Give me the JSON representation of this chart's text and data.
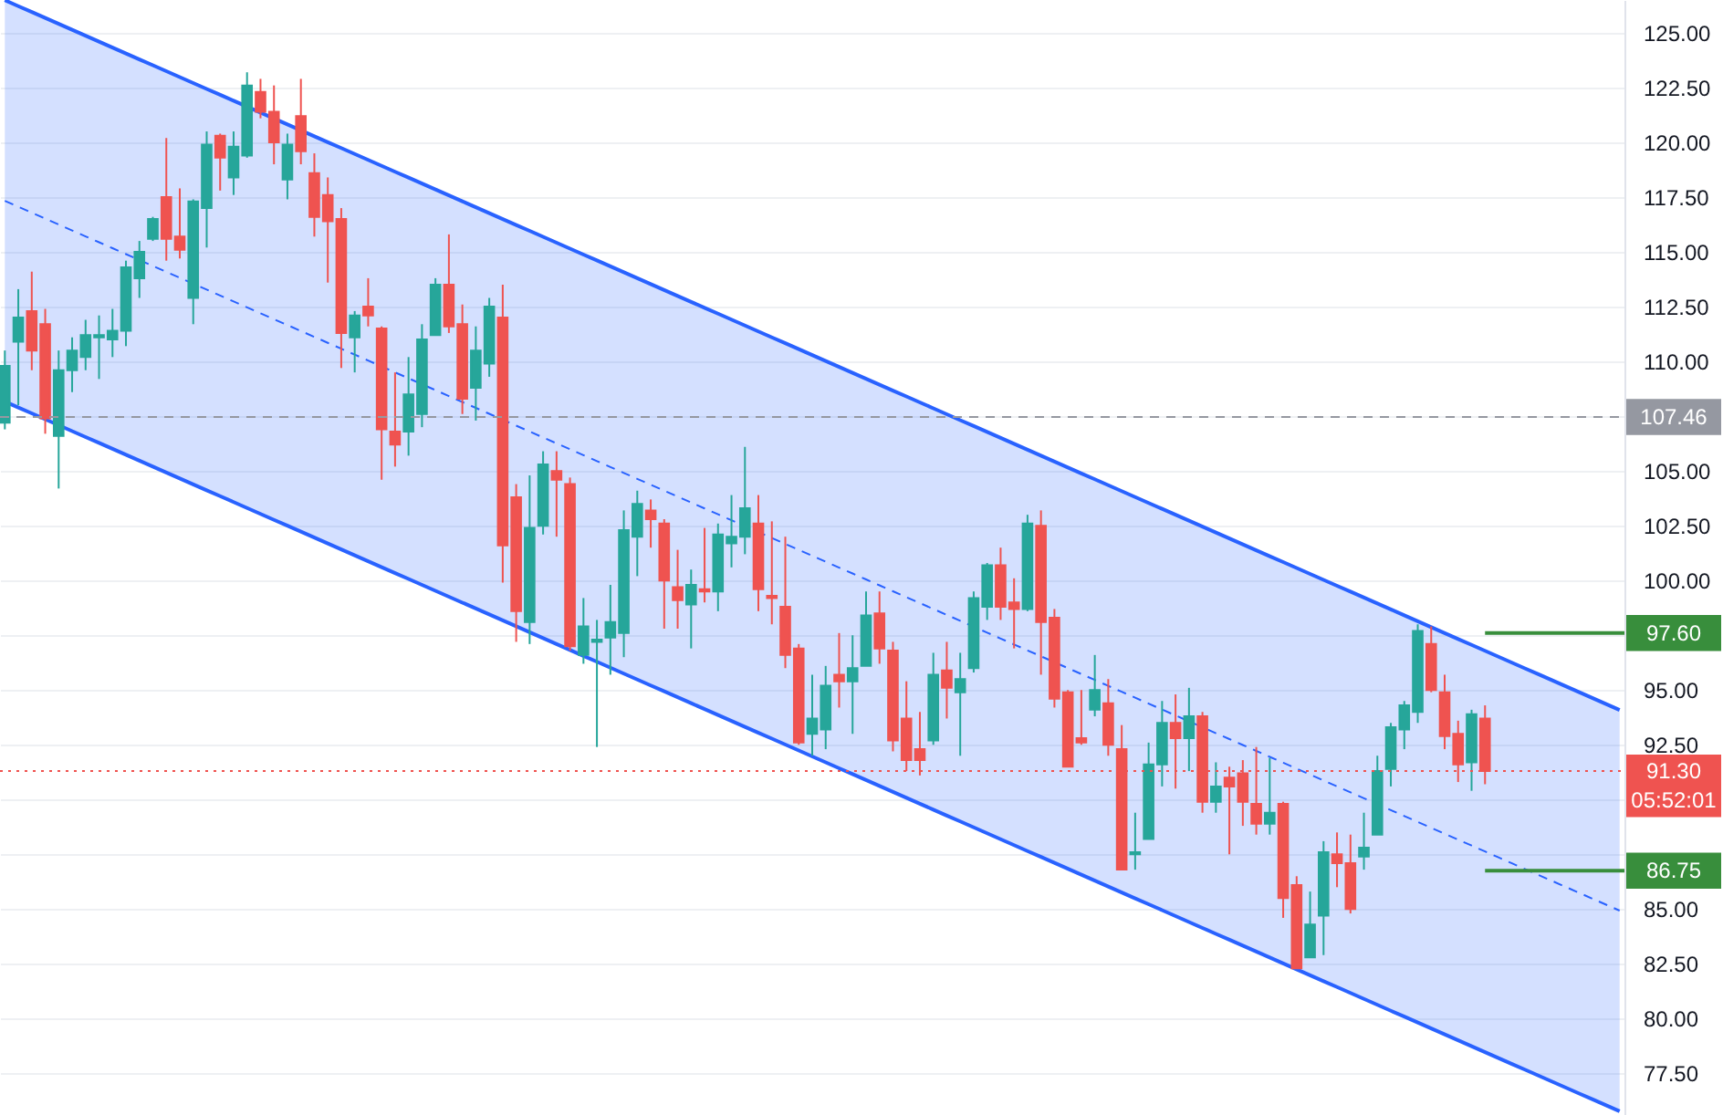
{
  "chart_data": {
    "type": "candlestick",
    "categories": [
      null,
      null,
      null,
      null,
      null,
      null,
      null,
      null,
      null,
      null,
      null,
      null,
      null,
      null,
      null,
      null,
      null,
      null,
      null,
      null,
      null,
      null,
      null,
      null,
      null,
      null,
      null,
      null,
      null,
      null,
      null,
      null,
      null,
      null,
      null,
      null,
      null,
      null,
      null,
      null,
      null,
      null,
      null,
      null,
      null,
      null,
      null,
      null,
      null,
      null,
      null,
      null,
      null,
      null,
      null,
      null,
      null,
      null,
      null,
      null,
      null,
      null,
      null,
      null,
      null,
      null,
      null,
      null,
      null,
      null,
      null,
      null,
      null,
      null,
      null,
      null,
      null,
      null,
      null,
      null,
      null,
      null,
      null,
      null,
      null,
      null,
      null,
      null,
      null,
      null,
      null,
      null,
      null,
      null,
      null,
      null,
      null,
      null,
      null,
      null,
      null,
      null,
      null,
      null,
      null,
      null,
      null,
      null,
      null,
      null,
      null,
      null,
      null,
      null,
      null,
      null,
      null,
      null,
      null,
      null,
      null
    ],
    "ohlc": [
      [
        107.2,
        110.5,
        106.9,
        109.8
      ],
      [
        110.9,
        113.3,
        108.0,
        112.0
      ],
      [
        112.3,
        114.1,
        109.6,
        110.5
      ],
      [
        111.7,
        112.4,
        106.7,
        107.4
      ],
      [
        106.6,
        110.5,
        104.2,
        109.6
      ],
      [
        109.6,
        111.1,
        108.6,
        110.5
      ],
      [
        110.2,
        111.9,
        109.6,
        111.2
      ],
      [
        111.1,
        112.1,
        109.2,
        111.2
      ],
      [
        111.0,
        112.4,
        110.2,
        111.4
      ],
      [
        111.4,
        114.6,
        110.7,
        114.3
      ],
      [
        113.8,
        115.5,
        112.9,
        115.0
      ],
      [
        115.6,
        116.6,
        115.5,
        116.5
      ],
      [
        117.5,
        120.2,
        114.6,
        115.6
      ],
      [
        115.7,
        117.9,
        114.7,
        115.1
      ],
      [
        112.9,
        117.4,
        111.7,
        117.3
      ],
      [
        117.0,
        120.5,
        115.2,
        119.9
      ],
      [
        120.3,
        120.4,
        117.8,
        119.3
      ],
      [
        118.4,
        120.5,
        117.6,
        119.8
      ],
      [
        119.4,
        123.2,
        119.3,
        122.6
      ],
      [
        122.3,
        122.9,
        121.1,
        121.4
      ],
      [
        121.4,
        122.6,
        119.0,
        120.0
      ],
      [
        118.3,
        120.4,
        117.4,
        119.9
      ],
      [
        121.2,
        122.9,
        119.0,
        119.6
      ],
      [
        118.6,
        119.5,
        115.7,
        116.6
      ],
      [
        117.6,
        118.4,
        113.6,
        116.4
      ],
      [
        116.5,
        117.0,
        109.7,
        111.3
      ],
      [
        111.1,
        112.3,
        109.5,
        112.1
      ],
      [
        112.5,
        113.8,
        111.6,
        112.1
      ],
      [
        111.5,
        111.6,
        104.6,
        106.9
      ],
      [
        106.8,
        109.5,
        105.2,
        106.2
      ],
      [
        106.8,
        110.2,
        105.7,
        108.5
      ],
      [
        107.6,
        111.7,
        107.0,
        111.0
      ],
      [
        111.2,
        113.8,
        111.2,
        113.5
      ],
      [
        113.5,
        115.8,
        111.3,
        111.6
      ],
      [
        111.7,
        112.6,
        107.6,
        108.3
      ],
      [
        108.8,
        111.6,
        107.3,
        110.5
      ],
      [
        109.9,
        112.9,
        109.3,
        112.5
      ],
      [
        112.0,
        113.5,
        99.9,
        101.6
      ],
      [
        103.8,
        104.4,
        97.2,
        98.6
      ],
      [
        98.1,
        104.8,
        97.1,
        102.4
      ],
      [
        102.5,
        105.9,
        102.1,
        105.3
      ],
      [
        105.0,
        105.9,
        102.0,
        104.6
      ],
      [
        104.4,
        104.7,
        96.8,
        97.0
      ],
      [
        96.6,
        99.2,
        96.2,
        97.9
      ],
      [
        97.2,
        98.2,
        92.4,
        97.3
      ],
      [
        97.4,
        99.8,
        95.7,
        98.1
      ],
      [
        97.6,
        103.2,
        96.5,
        102.3
      ],
      [
        102.0,
        104.1,
        100.2,
        103.5
      ],
      [
        103.2,
        103.7,
        101.5,
        102.8
      ],
      [
        102.6,
        102.8,
        97.8,
        100.0
      ],
      [
        99.7,
        101.4,
        97.8,
        99.1
      ],
      [
        98.9,
        100.5,
        96.9,
        99.8
      ],
      [
        99.6,
        102.4,
        99.0,
        99.5
      ],
      [
        99.5,
        102.6,
        98.6,
        102.1
      ],
      [
        101.7,
        103.9,
        100.6,
        102.0
      ],
      [
        102.0,
        106.1,
        101.2,
        103.3
      ],
      [
        102.6,
        103.9,
        98.6,
        99.6
      ],
      [
        99.3,
        102.7,
        98.0,
        99.2
      ],
      [
        98.8,
        102.0,
        96.0,
        96.6
      ],
      [
        96.9,
        97.1,
        92.5,
        92.6
      ],
      [
        93.0,
        95.7,
        92.0,
        93.7
      ],
      [
        93.2,
        96.1,
        92.3,
        95.2
      ],
      [
        95.7,
        97.6,
        94.2,
        95.4
      ],
      [
        95.4,
        97.5,
        93.0,
        96.0
      ],
      [
        96.1,
        99.5,
        96.1,
        98.4
      ],
      [
        98.5,
        99.5,
        96.2,
        96.9
      ],
      [
        96.8,
        97.2,
        92.2,
        92.7
      ],
      [
        93.7,
        95.4,
        91.3,
        91.8
      ],
      [
        92.3,
        94.0,
        91.1,
        91.8
      ],
      [
        92.7,
        96.7,
        92.5,
        95.7
      ],
      [
        95.9,
        97.2,
        93.7,
        95.1
      ],
      [
        94.9,
        96.7,
        92.0,
        95.5
      ],
      [
        96.0,
        99.5,
        95.8,
        99.2
      ],
      [
        98.8,
        100.8,
        98.2,
        100.7
      ],
      [
        100.7,
        101.5,
        98.2,
        98.8
      ],
      [
        99.0,
        100.1,
        96.9,
        98.7
      ],
      [
        98.7,
        103.0,
        98.6,
        102.6
      ],
      [
        102.5,
        103.2,
        95.7,
        98.1
      ],
      [
        98.3,
        98.7,
        94.2,
        94.6
      ],
      [
        94.9,
        95.0,
        91.5,
        91.5
      ],
      [
        92.8,
        95.0,
        92.5,
        92.6
      ],
      [
        94.1,
        96.6,
        93.8,
        95.0
      ],
      [
        94.4,
        95.5,
        92.0,
        92.5
      ],
      [
        92.3,
        93.4,
        86.8,
        86.8
      ],
      [
        87.5,
        89.4,
        86.8,
        87.6
      ],
      [
        88.2,
        92.6,
        88.2,
        91.6
      ],
      [
        91.6,
        94.5,
        90.6,
        93.5
      ],
      [
        93.5,
        94.8,
        90.5,
        92.8
      ],
      [
        92.8,
        95.1,
        91.3,
        93.8
      ],
      [
        93.8,
        94.0,
        89.4,
        89.9
      ],
      [
        89.9,
        91.7,
        89.4,
        90.6
      ],
      [
        91.0,
        91.5,
        87.5,
        90.6
      ],
      [
        91.2,
        91.8,
        88.8,
        89.9
      ],
      [
        89.8,
        92.4,
        88.4,
        88.9
      ],
      [
        88.9,
        91.9,
        88.4,
        89.4
      ],
      [
        89.8,
        89.9,
        84.6,
        85.5
      ],
      [
        86.1,
        86.5,
        82.3,
        82.3
      ],
      [
        82.8,
        85.8,
        82.8,
        84.3
      ],
      [
        84.7,
        88.1,
        82.9,
        87.6
      ],
      [
        87.5,
        88.5,
        86.0,
        87.1
      ],
      [
        87.1,
        88.4,
        84.8,
        85.0
      ],
      [
        87.4,
        89.4,
        86.8,
        87.8
      ],
      [
        88.4,
        92.0,
        88.4,
        91.3
      ],
      [
        91.4,
        93.5,
        90.6,
        93.3
      ],
      [
        93.2,
        94.5,
        92.3,
        94.3
      ],
      [
        94.0,
        98.0,
        93.5,
        97.7
      ],
      [
        97.1,
        97.9,
        94.9,
        95.0
      ],
      [
        94.9,
        95.7,
        92.3,
        92.9
      ],
      [
        93.0,
        93.6,
        90.8,
        91.6
      ],
      [
        91.7,
        94.1,
        90.4,
        93.9
      ],
      [
        93.7,
        94.3,
        90.7,
        91.3
      ],
      null,
      null,
      null,
      null,
      null,
      null,
      null,
      null,
      null,
      null
    ],
    "colors": [
      "#26a69a",
      "#26a69a",
      "#ef5350",
      "#ef5350",
      "#26a69a",
      "#26a69a",
      "#26a69a",
      "#26a69a",
      "#26a69a",
      "#26a69a",
      "#26a69a",
      "#26a69a",
      "#ef5350",
      "#ef5350",
      "#26a69a",
      "#26a69a",
      "#ef5350",
      "#26a69a",
      "#26a69a",
      "#ef5350",
      "#ef5350",
      "#26a69a",
      "#ef5350",
      "#ef5350",
      "#ef5350",
      "#ef5350",
      "#26a69a",
      "#ef5350",
      "#ef5350",
      "#ef5350",
      "#26a69a",
      "#26a69a",
      "#26a69a",
      "#ef5350",
      "#ef5350",
      "#26a69a",
      "#26a69a",
      "#ef5350",
      "#ef5350",
      "#26a69a",
      "#26a69a",
      "#ef5350",
      "#ef5350",
      "#26a69a",
      "#26a69a",
      "#26a69a",
      "#26a69a",
      "#26a69a",
      "#ef5350",
      "#ef5350",
      "#ef5350",
      "#26a69a",
      "#ef5350",
      "#26a69a",
      "#26a69a",
      "#26a69a",
      "#ef5350",
      "#ef5350",
      "#ef5350",
      "#ef5350",
      "#26a69a",
      "#26a69a",
      "#ef5350",
      "#26a69a",
      "#26a69a",
      "#ef5350",
      "#ef5350",
      "#ef5350",
      "#ef5350",
      "#26a69a",
      "#ef5350",
      "#26a69a",
      "#26a69a",
      "#26a69a",
      "#ef5350",
      "#ef5350",
      "#26a69a",
      "#ef5350",
      "#ef5350",
      "#ef5350",
      "#ef5350",
      "#26a69a",
      "#ef5350",
      "#ef5350",
      "#26a69a",
      "#26a69a",
      "#26a69a",
      "#ef5350",
      "#26a69a",
      "#ef5350",
      "#26a69a",
      "#ef5350",
      "#ef5350",
      "#ef5350",
      "#26a69a",
      "#ef5350",
      "#ef5350",
      "#26a69a",
      "#26a69a",
      "#ef5350",
      "#ef5350",
      "#26a69a",
      "#26a69a",
      "#26a69a",
      "#26a69a",
      "#26a69a",
      "#ef5350",
      "#ef5350",
      "#ef5350",
      "#26a69a",
      "#ef5350",
      null,
      null,
      null,
      null,
      null,
      null,
      null,
      null,
      null,
      null
    ],
    "series": [
      {
        "type": "line",
        "color": "#2962ff",
        "line_style": "dashed",
        "values": [
          117.33,
          117.06,
          116.79,
          116.52,
          116.25,
          115.98,
          115.71,
          115.44,
          115.17,
          114.9,
          114.63,
          114.36,
          114.09,
          113.82,
          113.55,
          113.28,
          113.01,
          112.74,
          112.47,
          112.2,
          111.93,
          111.66,
          111.39,
          111.12,
          110.85,
          110.58,
          110.31,
          110.04,
          109.77,
          109.5,
          109.23,
          108.96,
          108.69,
          108.42,
          108.15,
          107.88,
          107.61,
          107.34,
          107.07,
          106.8,
          106.53,
          106.26,
          105.99,
          105.72,
          105.45,
          105.18,
          104.91,
          104.64,
          104.37,
          104.1,
          103.83,
          103.56,
          103.29,
          103.02,
          102.75,
          102.48,
          102.21,
          101.94,
          101.67,
          101.4,
          101.13,
          100.86,
          100.59,
          100.32,
          100.05,
          99.78,
          99.51,
          99.24,
          98.97,
          98.7,
          98.43,
          98.16,
          97.89,
          97.62,
          97.35,
          97.08,
          96.81,
          96.54,
          96.27,
          96.0,
          95.73,
          95.46,
          95.19,
          94.92,
          94.65,
          94.38,
          94.11,
          93.84,
          93.57,
          93.3,
          93.03,
          92.76,
          92.49,
          92.22,
          91.95,
          91.68,
          91.41,
          91.14,
          90.87,
          90.6,
          90.33,
          90.06,
          89.79,
          89.52,
          89.25,
          88.98,
          88.71,
          88.44,
          88.17,
          87.9,
          87.63,
          87.36,
          87.09,
          86.82,
          86.55,
          86.28,
          86.01,
          85.74,
          85.47,
          85.2,
          84.93
        ],
        "upper": [
          126.49,
          126.22,
          125.95,
          125.68,
          125.41,
          125.14,
          124.87,
          124.6,
          124.33,
          124.06,
          123.79,
          123.52,
          123.25,
          122.98,
          122.71,
          122.44,
          122.17,
          121.9,
          121.63,
          121.36,
          121.09,
          120.82,
          120.55,
          120.28,
          120.01,
          119.74,
          119.47,
          119.2,
          118.93,
          118.66,
          118.39,
          118.12,
          117.85,
          117.58,
          117.31,
          117.04,
          116.77,
          116.5,
          116.23,
          115.96,
          115.69,
          115.42,
          115.15,
          114.88,
          114.61,
          114.34,
          114.07,
          113.8,
          113.53,
          113.26,
          112.99,
          112.72,
          112.45,
          112.18,
          111.91,
          111.64,
          111.37,
          111.1,
          110.83,
          110.56,
          110.29,
          110.02,
          109.75,
          109.48,
          109.21,
          108.94,
          108.67,
          108.4,
          108.13,
          107.86,
          107.59,
          107.32,
          107.05,
          106.78,
          106.51,
          106.24,
          105.97,
          105.7,
          105.43,
          105.16,
          104.89,
          104.62,
          104.35,
          104.08,
          103.81,
          103.54,
          103.27,
          103.0,
          102.73,
          102.46,
          102.19,
          101.92,
          101.65,
          101.38,
          101.11,
          100.84,
          100.57,
          100.3,
          100.03,
          99.76,
          99.49,
          99.22,
          98.95,
          98.68,
          98.41,
          98.14,
          97.87,
          97.6,
          97.33,
          97.06,
          96.79,
          96.52,
          96.25,
          95.98,
          95.71,
          95.44,
          95.17,
          94.9,
          94.63,
          94.36,
          94.09
        ],
        "lower": [
          108.17,
          107.9,
          107.63,
          107.36,
          107.09,
          106.82,
          106.55,
          106.28,
          106.01,
          105.74,
          105.47,
          105.2,
          104.93,
          104.66,
          104.39,
          104.12,
          103.85,
          103.58,
          103.31,
          103.04,
          102.77,
          102.5,
          102.23,
          101.96,
          101.69,
          101.42,
          101.15,
          100.88,
          100.61,
          100.34,
          100.07,
          99.8,
          99.53,
          99.26,
          98.99,
          98.72,
          98.45,
          98.18,
          97.91,
          97.64,
          97.37,
          97.1,
          96.83,
          96.56,
          96.29,
          96.02,
          95.75,
          95.48,
          95.21,
          94.94,
          94.67,
          94.4,
          94.13,
          93.86,
          93.59,
          93.32,
          93.05,
          92.78,
          92.51,
          92.24,
          91.97,
          91.7,
          91.43,
          91.16,
          90.89,
          90.62,
          90.35,
          90.08,
          89.81,
          89.54,
          89.27,
          89.0,
          88.73,
          88.46,
          88.19,
          87.92,
          87.65,
          87.38,
          87.11,
          86.84,
          86.57,
          86.3,
          86.03,
          85.76,
          85.49,
          85.22,
          84.95,
          84.68,
          84.41,
          84.14,
          83.87,
          83.6,
          83.33,
          83.06,
          82.79,
          82.52,
          82.25,
          81.98,
          81.71,
          81.44,
          81.17,
          80.9,
          80.63,
          80.36,
          80.09,
          79.82,
          79.55,
          79.28,
          79.01,
          78.74,
          78.47,
          78.2,
          77.93,
          77.66,
          77.39,
          77.12,
          76.85,
          76.58,
          76.31,
          76.04,
          75.77
        ]
      },
      {
        "type": "line",
        "color": "#2962ff",
        "line_style": "solid",
        "values": [
          126.49,
          126.22,
          125.95,
          125.68,
          125.41,
          125.14,
          124.87,
          124.6,
          124.33,
          124.06,
          123.79,
          123.52,
          123.25,
          122.98,
          122.71,
          122.44,
          122.17,
          121.9,
          121.63,
          121.36,
          121.09,
          120.82,
          120.55,
          120.28,
          120.01,
          119.74,
          119.47,
          119.2,
          118.93,
          118.66,
          118.39,
          118.12,
          117.85,
          117.58,
          117.31,
          117.04,
          116.77,
          116.5,
          116.23,
          115.96,
          115.69,
          115.42,
          115.15,
          114.88,
          114.61,
          114.34,
          114.07,
          113.8,
          113.53,
          113.26,
          112.99,
          112.72,
          112.45,
          112.18,
          111.91,
          111.64,
          111.37,
          111.1,
          110.83,
          110.56,
          110.29,
          110.02,
          109.75,
          109.48,
          109.21,
          108.94,
          108.67,
          108.4,
          108.13,
          107.86,
          107.59,
          107.32,
          107.05,
          106.78,
          106.51,
          106.24,
          105.97,
          105.7,
          105.43,
          105.16,
          104.89,
          104.62,
          104.35,
          104.08,
          103.81,
          103.54,
          103.27,
          103.0,
          102.73,
          102.46,
          102.19,
          101.92,
          101.65,
          101.38,
          101.11,
          100.84,
          100.57,
          100.3,
          100.03,
          99.76,
          99.49,
          99.22,
          98.95,
          98.68,
          98.41,
          98.14,
          97.87,
          97.6,
          97.33,
          97.06,
          96.79,
          96.52,
          96.25,
          95.98,
          95.71,
          95.44,
          95.17,
          94.9,
          94.63,
          94.36,
          94.09
        ]
      },
      {
        "type": "line",
        "color": "#2962ff",
        "line_style": "solid",
        "values": [
          108.17,
          107.9,
          107.63,
          107.36,
          107.09,
          106.82,
          106.55,
          106.28,
          106.01,
          105.74,
          105.47,
          105.2,
          104.93,
          104.66,
          104.39,
          104.12,
          103.85,
          103.58,
          103.31,
          103.04,
          102.77,
          102.5,
          102.23,
          101.96,
          101.69,
          101.42,
          101.15,
          100.88,
          100.61,
          100.34,
          100.07,
          99.8,
          99.53,
          99.26,
          98.99,
          98.72,
          98.45,
          98.18,
          97.91,
          97.64,
          97.37,
          97.1,
          96.83,
          96.56,
          96.29,
          96.02,
          95.75,
          95.48,
          95.21,
          94.94,
          94.67,
          94.4,
          94.13,
          93.86,
          93.59,
          93.32,
          93.05,
          92.78,
          92.51,
          92.24,
          91.97,
          91.7,
          91.43,
          91.16,
          90.89,
          90.62,
          90.35,
          90.08,
          89.81,
          89.54,
          89.27,
          89.0,
          88.73,
          88.46,
          88.19,
          87.92,
          87.65,
          87.38,
          87.11,
          86.84,
          86.57,
          86.3,
          86.03,
          85.76,
          85.49,
          85.22,
          84.95,
          84.68,
          84.41,
          84.14,
          83.87,
          83.6,
          83.33,
          83.06,
          82.79,
          82.52,
          82.25,
          81.98,
          81.71,
          81.44,
          81.17,
          80.9,
          80.63,
          80.36,
          80.09,
          79.82,
          79.55,
          79.28,
          79.01,
          78.74,
          78.47,
          78.2,
          77.93,
          77.66,
          77.39,
          77.12,
          76.85,
          76.58,
          76.31,
          76.04,
          75.77
        ]
      }
    ],
    "ylim": [
      75.6,
      126.5
    ],
    "yticks": [
      {
        "value": 77.5,
        "label": "77.50"
      },
      {
        "value": 80,
        "label": "80.00"
      },
      {
        "value": 82.5,
        "label": "82.50"
      },
      {
        "value": 85,
        "label": "85.00"
      },
      {
        "value": 87.5,
        "label": null
      },
      {
        "value": 90,
        "label": null
      },
      {
        "value": 92.5,
        "label": "92.50"
      },
      {
        "value": 95,
        "label": "95.00"
      },
      {
        "value": 97.5,
        "label": null
      },
      {
        "value": 100,
        "label": "100.00"
      },
      {
        "value": 102.5,
        "label": "102.50"
      },
      {
        "value": 105,
        "label": "105.00"
      },
      {
        "value": 107.5,
        "label": null
      },
      {
        "value": 110,
        "label": "110.00"
      },
      {
        "value": 112.5,
        "label": "112.50"
      },
      {
        "value": 115,
        "label": "115.00"
      },
      {
        "value": 117.5,
        "label": "117.50"
      },
      {
        "value": 120,
        "label": "120.00"
      },
      {
        "value": 122.5,
        "label": "122.50"
      },
      {
        "value": 125,
        "label": "125.00"
      }
    ],
    "grid": "y",
    "tick_labels": "y",
    "ref_lines": [
      {
        "axis": "y",
        "value": 107.46,
        "label": "107.46",
        "color": "#9598a1",
        "line_style": "dashed"
      },
      {
        "axis": "y",
        "value": 97.6,
        "label": "97.60",
        "color": "#388e3c",
        "line_style": "solid"
      },
      {
        "axis": "y",
        "value": 86.75,
        "label": "86.75",
        "color": "#388e3c",
        "line_style": "solid"
      },
      {
        "axis": "y",
        "value": 91.3,
        "label": "91.30",
        "color": "#ef5350",
        "line_style": "dotted"
      }
    ],
    "annotations": [
      "05:52:01"
    ]
  }
}
